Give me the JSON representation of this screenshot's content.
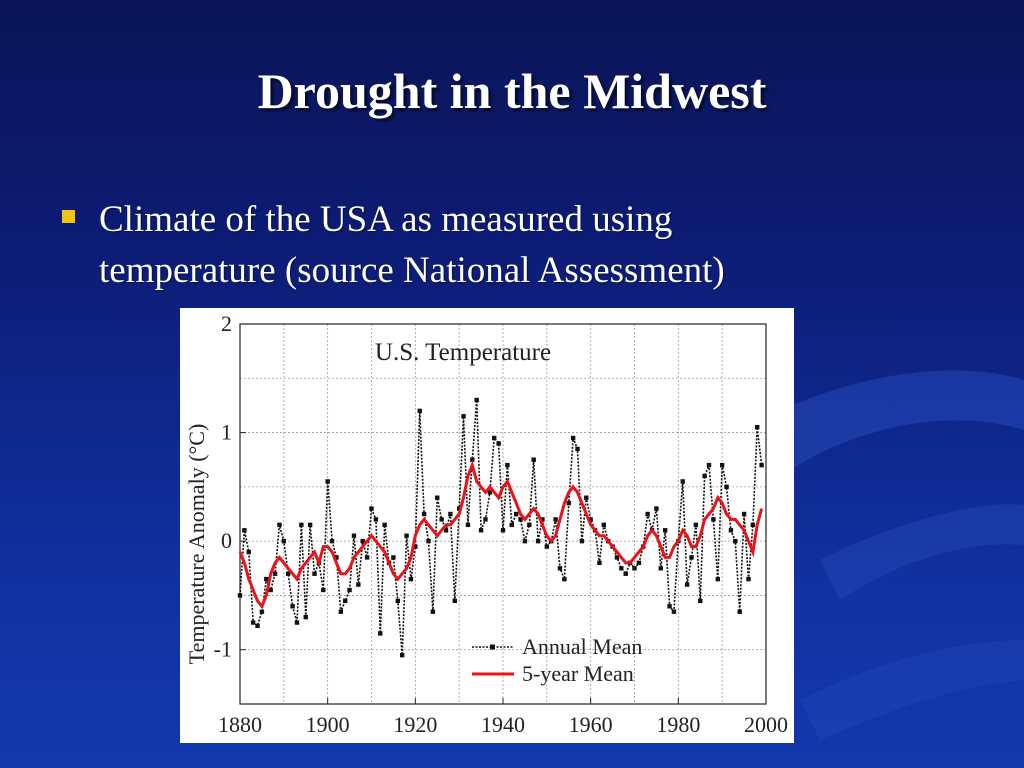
{
  "slide": {
    "title": "Drought in the Midwest",
    "bullets": [
      {
        "line1": "Climate of the USA as measured using",
        "line2": "temperature (source National Assessment)"
      }
    ]
  },
  "colors": {
    "background_top": "#0a1456",
    "background_bottom": "#1238ad",
    "bullet_marker": "#f1c40f",
    "five_year_line": "#e8141b",
    "annual_line": "#111111"
  },
  "chart_data": {
    "type": "line",
    "title": "U.S. Temperature",
    "xlabel": "",
    "ylabel": "Temperature Anomaly (°C)",
    "xlim": [
      1880,
      2000
    ],
    "ylim": [
      -1.5,
      2
    ],
    "x_ticks": [
      1880,
      1900,
      1920,
      1940,
      1960,
      1980,
      2000
    ],
    "y_ticks": [
      2,
      1,
      0,
      -1
    ],
    "grid": true,
    "legend": "bottom-center",
    "series": [
      {
        "name": "Annual Mean",
        "x": [
          1880,
          1881,
          1882,
          1883,
          1884,
          1885,
          1886,
          1887,
          1888,
          1889,
          1890,
          1891,
          1892,
          1893,
          1894,
          1895,
          1896,
          1897,
          1898,
          1899,
          1900,
          1901,
          1902,
          1903,
          1904,
          1905,
          1906,
          1907,
          1908,
          1909,
          1910,
          1911,
          1912,
          1913,
          1914,
          1915,
          1916,
          1917,
          1918,
          1919,
          1920,
          1921,
          1922,
          1923,
          1924,
          1925,
          1926,
          1927,
          1928,
          1929,
          1930,
          1931,
          1932,
          1933,
          1934,
          1935,
          1936,
          1937,
          1938,
          1939,
          1940,
          1941,
          1942,
          1943,
          1944,
          1945,
          1946,
          1947,
          1948,
          1949,
          1950,
          1951,
          1952,
          1953,
          1954,
          1955,
          1956,
          1957,
          1958,
          1959,
          1960,
          1961,
          1962,
          1963,
          1964,
          1965,
          1966,
          1967,
          1968,
          1969,
          1970,
          1971,
          1972,
          1973,
          1974,
          1975,
          1976,
          1977,
          1978,
          1979,
          1980,
          1981,
          1982,
          1983,
          1984,
          1985,
          1986,
          1987,
          1988,
          1989,
          1990,
          1991,
          1992,
          1993,
          1994,
          1995,
          1996,
          1997,
          1998,
          1999
        ],
        "values": [
          -0.5,
          0.1,
          -0.1,
          -0.75,
          -0.78,
          -0.65,
          -0.35,
          -0.45,
          -0.3,
          0.15,
          0.0,
          -0.3,
          -0.6,
          -0.75,
          0.15,
          -0.7,
          0.15,
          -0.3,
          -0.2,
          -0.45,
          0.55,
          0.0,
          -0.15,
          -0.65,
          -0.55,
          -0.45,
          0.05,
          -0.4,
          0.0,
          -0.15,
          0.3,
          0.2,
          -0.85,
          0.15,
          -0.2,
          -0.15,
          -0.55,
          -1.05,
          0.05,
          -0.35,
          -0.05,
          1.2,
          0.25,
          0.0,
          -0.65,
          0.4,
          0.2,
          0.1,
          0.25,
          -0.55,
          0.3,
          1.15,
          0.15,
          0.75,
          1.3,
          0.1,
          0.2,
          0.45,
          0.95,
          0.9,
          0.1,
          0.7,
          0.15,
          0.25,
          0.2,
          0.0,
          0.15,
          0.75,
          0.0,
          0.2,
          -0.05,
          0.0,
          0.2,
          -0.25,
          -0.35,
          0.35,
          0.95,
          0.85,
          0.0,
          0.4,
          0.2,
          0.1,
          -0.2,
          0.15,
          0.0,
          -0.05,
          -0.15,
          -0.25,
          -0.3,
          -0.2,
          -0.25,
          -0.2,
          -0.05,
          0.25,
          0.1,
          0.3,
          -0.25,
          0.1,
          -0.6,
          -0.65,
          0.0,
          0.55,
          -0.4,
          -0.15,
          0.15,
          -0.55,
          0.6,
          0.7,
          0.2,
          -0.35,
          0.7,
          0.5,
          0.1,
          0.0,
          -0.65,
          0.25,
          -0.35,
          0.15,
          1.05,
          0.7
        ]
      },
      {
        "name": "5-year Mean",
        "x": [
          1880,
          1881,
          1882,
          1883,
          1884,
          1885,
          1886,
          1887,
          1888,
          1889,
          1890,
          1891,
          1892,
          1893,
          1894,
          1895,
          1896,
          1897,
          1898,
          1899,
          1900,
          1901,
          1902,
          1903,
          1904,
          1905,
          1906,
          1907,
          1908,
          1909,
          1910,
          1911,
          1912,
          1913,
          1914,
          1915,
          1916,
          1917,
          1918,
          1919,
          1920,
          1921,
          1922,
          1923,
          1924,
          1925,
          1926,
          1927,
          1928,
          1929,
          1930,
          1931,
          1932,
          1933,
          1934,
          1935,
          1936,
          1937,
          1938,
          1939,
          1940,
          1941,
          1942,
          1943,
          1944,
          1945,
          1946,
          1947,
          1948,
          1949,
          1950,
          1951,
          1952,
          1953,
          1954,
          1955,
          1956,
          1957,
          1958,
          1959,
          1960,
          1961,
          1962,
          1963,
          1964,
          1965,
          1966,
          1967,
          1968,
          1969,
          1970,
          1971,
          1972,
          1973,
          1974,
          1975,
          1976,
          1977,
          1978,
          1979,
          1980,
          1981,
          1982,
          1983,
          1984,
          1985,
          1986,
          1987,
          1988,
          1989,
          1990,
          1991,
          1992,
          1993,
          1994,
          1995,
          1996,
          1997,
          1998,
          1999
        ],
        "values": [
          -0.1,
          -0.2,
          -0.35,
          -0.45,
          -0.55,
          -0.6,
          -0.5,
          -0.3,
          -0.2,
          -0.15,
          -0.2,
          -0.25,
          -0.3,
          -0.35,
          -0.25,
          -0.2,
          -0.15,
          -0.1,
          -0.2,
          -0.05,
          -0.05,
          -0.1,
          -0.2,
          -0.3,
          -0.3,
          -0.25,
          -0.15,
          -0.1,
          -0.05,
          0.0,
          0.05,
          0.0,
          -0.05,
          -0.1,
          -0.2,
          -0.3,
          -0.35,
          -0.3,
          -0.25,
          -0.15,
          0.05,
          0.15,
          0.2,
          0.15,
          0.1,
          0.05,
          0.1,
          0.15,
          0.15,
          0.2,
          0.25,
          0.4,
          0.6,
          0.7,
          0.55,
          0.5,
          0.45,
          0.5,
          0.45,
          0.4,
          0.5,
          0.55,
          0.45,
          0.35,
          0.25,
          0.2,
          0.25,
          0.3,
          0.25,
          0.15,
          0.05,
          0.0,
          0.05,
          0.2,
          0.35,
          0.45,
          0.5,
          0.45,
          0.35,
          0.25,
          0.15,
          0.1,
          0.05,
          0.05,
          0.0,
          -0.05,
          -0.1,
          -0.15,
          -0.2,
          -0.2,
          -0.15,
          -0.1,
          -0.05,
          0.05,
          0.1,
          0.05,
          -0.05,
          -0.15,
          -0.15,
          -0.05,
          0.0,
          0.1,
          0.05,
          -0.05,
          -0.05,
          0.05,
          0.2,
          0.25,
          0.3,
          0.4,
          0.35,
          0.25,
          0.2,
          0.2,
          0.15,
          0.1,
          0.0,
          -0.1,
          0.15,
          0.3
        ]
      }
    ],
    "annotations": []
  }
}
